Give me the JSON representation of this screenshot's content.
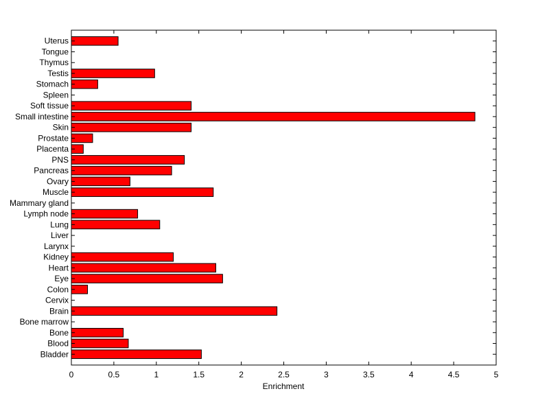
{
  "chart_data": {
    "type": "barh",
    "xlabel": "Enrichment",
    "categories": [
      "Bladder",
      "Blood",
      "Bone",
      "Bone marrow",
      "Brain",
      "Cervix",
      "Colon",
      "Eye",
      "Heart",
      "Kidney",
      "Larynx",
      "Liver",
      "Lung",
      "Lymph node",
      "Mammary gland",
      "Muscle",
      "Ovary",
      "Pancreas",
      "PNS",
      "Placenta",
      "Prostate",
      "Skin",
      "Small intestine",
      "Soft tissue",
      "Spleen",
      "Stomach",
      "Testis",
      "Thymus",
      "Tongue",
      "Uterus"
    ],
    "values": [
      1.53,
      0.67,
      0.61,
      0,
      2.42,
      0,
      0.19,
      1.78,
      1.7,
      1.2,
      0,
      0,
      1.04,
      0.78,
      0,
      1.67,
      0.69,
      1.18,
      1.33,
      0.14,
      0.25,
      1.41,
      4.75,
      1.41,
      0,
      0.31,
      0.98,
      0,
      0,
      0.55
    ],
    "color": "#ff0000",
    "xlim": [
      0,
      5
    ],
    "xticks": [
      0,
      0.5,
      1,
      1.5,
      2,
      2.5,
      3,
      3.5,
      4,
      4.5,
      5
    ]
  }
}
